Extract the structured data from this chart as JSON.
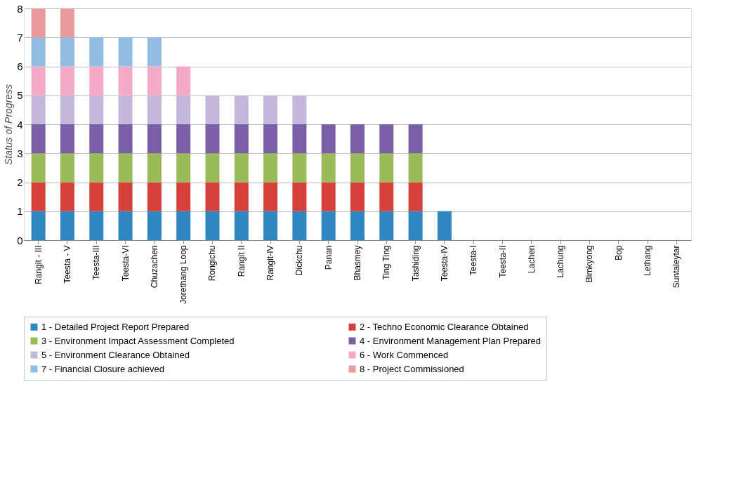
{
  "chart_data": {
    "type": "bar",
    "stacked": true,
    "ylabel": "Status of Progress",
    "ylim": [
      0,
      8
    ],
    "yticks": [
      0,
      1,
      2,
      3,
      4,
      5,
      6,
      7,
      8
    ],
    "grid": "y",
    "legend": "bottom",
    "categories": [
      "Rangit - III",
      "Teesta - V",
      "Teesta-III",
      "Teesta-VI",
      "Chuzachen",
      "Jorethang Loop",
      "Rongichu",
      "Rangit II",
      "Rangit-IV",
      "Dickchu",
      "Panan",
      "Bhasmey",
      "Ting Ting",
      "Tashiding",
      "Teesta-IV",
      "Teesta-I",
      "Teesta-II",
      "Lachen",
      "Lachung",
      "Bimkyong",
      "Bop",
      "Lethang",
      "Suntaleytar"
    ],
    "series": [
      {
        "name": "1 - Detailed Project Report Prepared",
        "color": "#2e87c0",
        "values": [
          1,
          1,
          1,
          1,
          1,
          1,
          1,
          1,
          1,
          1,
          1,
          1,
          1,
          1,
          1,
          null,
          null,
          null,
          null,
          null,
          null,
          null,
          null
        ]
      },
      {
        "name": "2 - Techno Economic Clearance Obtained",
        "color": "#d6403a",
        "values": [
          1,
          1,
          1,
          1,
          1,
          1,
          1,
          1,
          1,
          1,
          1,
          1,
          1,
          1,
          null,
          null,
          null,
          null,
          null,
          null,
          null,
          null,
          null
        ]
      },
      {
        "name": "3 - Environment Impact Assessment Completed",
        "color": "#9bbb59",
        "values": [
          1,
          1,
          1,
          1,
          1,
          1,
          1,
          1,
          1,
          1,
          1,
          1,
          1,
          1,
          null,
          null,
          null,
          null,
          null,
          null,
          null,
          null,
          null
        ]
      },
      {
        "name": "4 - Environment Management Plan Prepared",
        "color": "#7a5ea6",
        "values": [
          1,
          1,
          1,
          1,
          1,
          1,
          1,
          1,
          1,
          1,
          1,
          1,
          1,
          1,
          null,
          null,
          null,
          null,
          null,
          null,
          null,
          null,
          null
        ]
      },
      {
        "name": "5 - Environment Clearance Obtained",
        "color": "#c4b7d9",
        "values": [
          1,
          1,
          1,
          1,
          1,
          1,
          1,
          1,
          1,
          1,
          null,
          null,
          null,
          null,
          null,
          null,
          null,
          null,
          null,
          null,
          null,
          null,
          null
        ]
      },
      {
        "name": "6 - Work Commenced",
        "color": "#f4aac4",
        "values": [
          1,
          1,
          1,
          1,
          1,
          1,
          null,
          null,
          null,
          null,
          null,
          null,
          null,
          null,
          null,
          null,
          null,
          null,
          null,
          null,
          null,
          null,
          null
        ]
      },
      {
        "name": "7 - Financial Closure achieved",
        "color": "#92bde3",
        "values": [
          1,
          1,
          1,
          1,
          1,
          null,
          null,
          null,
          null,
          null,
          null,
          null,
          null,
          null,
          null,
          null,
          null,
          null,
          null,
          null,
          null,
          null,
          null
        ]
      },
      {
        "name": "8 - Project Commissioned",
        "color": "#e79b9c",
        "values": [
          1,
          1,
          null,
          null,
          null,
          null,
          null,
          null,
          null,
          null,
          null,
          null,
          null,
          null,
          null,
          null,
          null,
          null,
          null,
          null,
          null,
          null,
          null
        ]
      }
    ]
  }
}
